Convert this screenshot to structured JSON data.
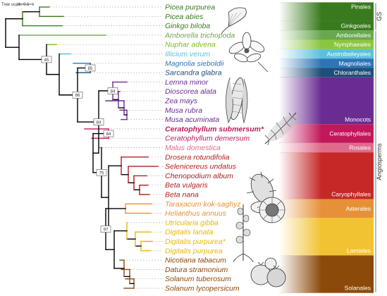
{
  "scale": {
    "label": "Tree scale: 0.1"
  },
  "taxa": [
    {
      "name": "Picea purpurea",
      "color": "#3a7a1e",
      "bold": false
    },
    {
      "name": "Picea abies",
      "color": "#3a7a1e",
      "bold": false
    },
    {
      "name": "Ginkgo biloba",
      "color": "#3a7a1e",
      "bold": false
    },
    {
      "name": "Amborella trichopoda",
      "color": "#6aa84f",
      "bold": false
    },
    {
      "name": "Nuphar advena",
      "color": "#7cbd1e",
      "bold": false
    },
    {
      "name": "Illicium verum",
      "color": "#5bc0de",
      "bold": false
    },
    {
      "name": "Magnolia sieboldii",
      "color": "#2e75b6",
      "bold": false
    },
    {
      "name": "Sarcandra glabra",
      "color": "#1f4e79",
      "bold": false
    },
    {
      "name": "Lemna minor",
      "color": "#6a2c91",
      "bold": false
    },
    {
      "name": "Dioscorea alata",
      "color": "#6a2c91",
      "bold": false
    },
    {
      "name": "Zea mays",
      "color": "#6a2c91",
      "bold": false
    },
    {
      "name": "Musa rubra",
      "color": "#6a2c91",
      "bold": false
    },
    {
      "name": "Musa acuminata",
      "color": "#6a2c91",
      "bold": false
    },
    {
      "name": "Ceratophyllum submersum*",
      "color": "#c2185b",
      "bold": true
    },
    {
      "name": "Ceratophyllum demersum",
      "color": "#c2185b",
      "bold": false
    },
    {
      "name": "Malus domestica",
      "color": "#e06a8c",
      "bold": false
    },
    {
      "name": "Drosera rotundifolia",
      "color": "#b71c1c",
      "bold": false
    },
    {
      "name": "Selenicereus undatus",
      "color": "#b71c1c",
      "bold": false
    },
    {
      "name": "Chenopodium album",
      "color": "#b71c1c",
      "bold": false
    },
    {
      "name": "Beta vulgaris",
      "color": "#b71c1c",
      "bold": false
    },
    {
      "name": "Beta nana",
      "color": "#b71c1c",
      "bold": false
    },
    {
      "name": "Taraxacum kok-saghyz",
      "color": "#e69138",
      "bold": false
    },
    {
      "name": "Helianthus annuus",
      "color": "#e69138",
      "bold": false
    },
    {
      "name": "Utricularia gibba",
      "color": "#e6b800",
      "bold": false
    },
    {
      "name": "Digitalis lanata",
      "color": "#e6b800",
      "bold": false
    },
    {
      "name": "Digitalis purpurea*",
      "color": "#e6b800",
      "bold": false
    },
    {
      "name": "Digitalis purpurea",
      "color": "#e6b800",
      "bold": false
    },
    {
      "name": "Nicotiana tabacum",
      "color": "#8b4a0a",
      "bold": false
    },
    {
      "name": "Datura stramonium",
      "color": "#8b4a0a",
      "bold": false
    },
    {
      "name": "Solanum tuberosum",
      "color": "#8b4a0a",
      "bold": false
    },
    {
      "name": "Solanum lycopersicum",
      "color": "#8b4a0a",
      "bold": false
    }
  ],
  "groups": [
    {
      "label": "Pinales",
      "from": 0,
      "to": 1,
      "color": "#3a7a1e",
      "label_pos": "top"
    },
    {
      "label": "Ginkgoales",
      "from": 2,
      "to": 2,
      "color": "#3a7a1e",
      "label_pos": "bottom"
    },
    {
      "label": "Amborellales",
      "from": 3,
      "to": 3,
      "color": "#6aa84f",
      "label_pos": "center"
    },
    {
      "label": "Nymphaeales",
      "from": 4,
      "to": 4,
      "color": "#8cc63f",
      "label_pos": "center"
    },
    {
      "label": "Austrobaileyales",
      "from": 5,
      "to": 5,
      "color": "#5bc0de",
      "label_pos": "center"
    },
    {
      "label": "Magnoliales",
      "from": 6,
      "to": 6,
      "color": "#2e75b6",
      "label_pos": "center"
    },
    {
      "label": "Chloranthales",
      "from": 7,
      "to": 7,
      "color": "#1f4e79",
      "label_pos": "center"
    },
    {
      "label": "Monocots",
      "from": 8,
      "to": 12,
      "color": "#6a2c91",
      "label_pos": "bottom"
    },
    {
      "label": "Ceratophyllales",
      "from": 13,
      "to": 14,
      "color": "#c2185b",
      "label_pos": "center"
    },
    {
      "label": "Rosales",
      "from": 15,
      "to": 15,
      "color": "#e06a8c",
      "label_pos": "center"
    },
    {
      "label": "Caryophyllales",
      "from": 16,
      "to": 20,
      "color": "#c62828",
      "label_pos": "bottom"
    },
    {
      "label": "Asterales",
      "from": 21,
      "to": 22,
      "color": "#e69138",
      "label_pos": "center"
    },
    {
      "label": "Lamiales",
      "from": 23,
      "to": 26,
      "color": "#f1c232",
      "label_pos": "bottom"
    },
    {
      "label": "Solanales",
      "from": 27,
      "to": 30,
      "color": "#8b4a0a",
      "label_pos": "bottom"
    }
  ],
  "side_labels": [
    {
      "label": "GS",
      "from": 0,
      "to": 2
    },
    {
      "label": "Angiosperms",
      "from": 3,
      "to": 30
    }
  ],
  "support_values": [
    "45",
    "85",
    "86",
    "84",
    "84",
    "75",
    "97"
  ]
}
